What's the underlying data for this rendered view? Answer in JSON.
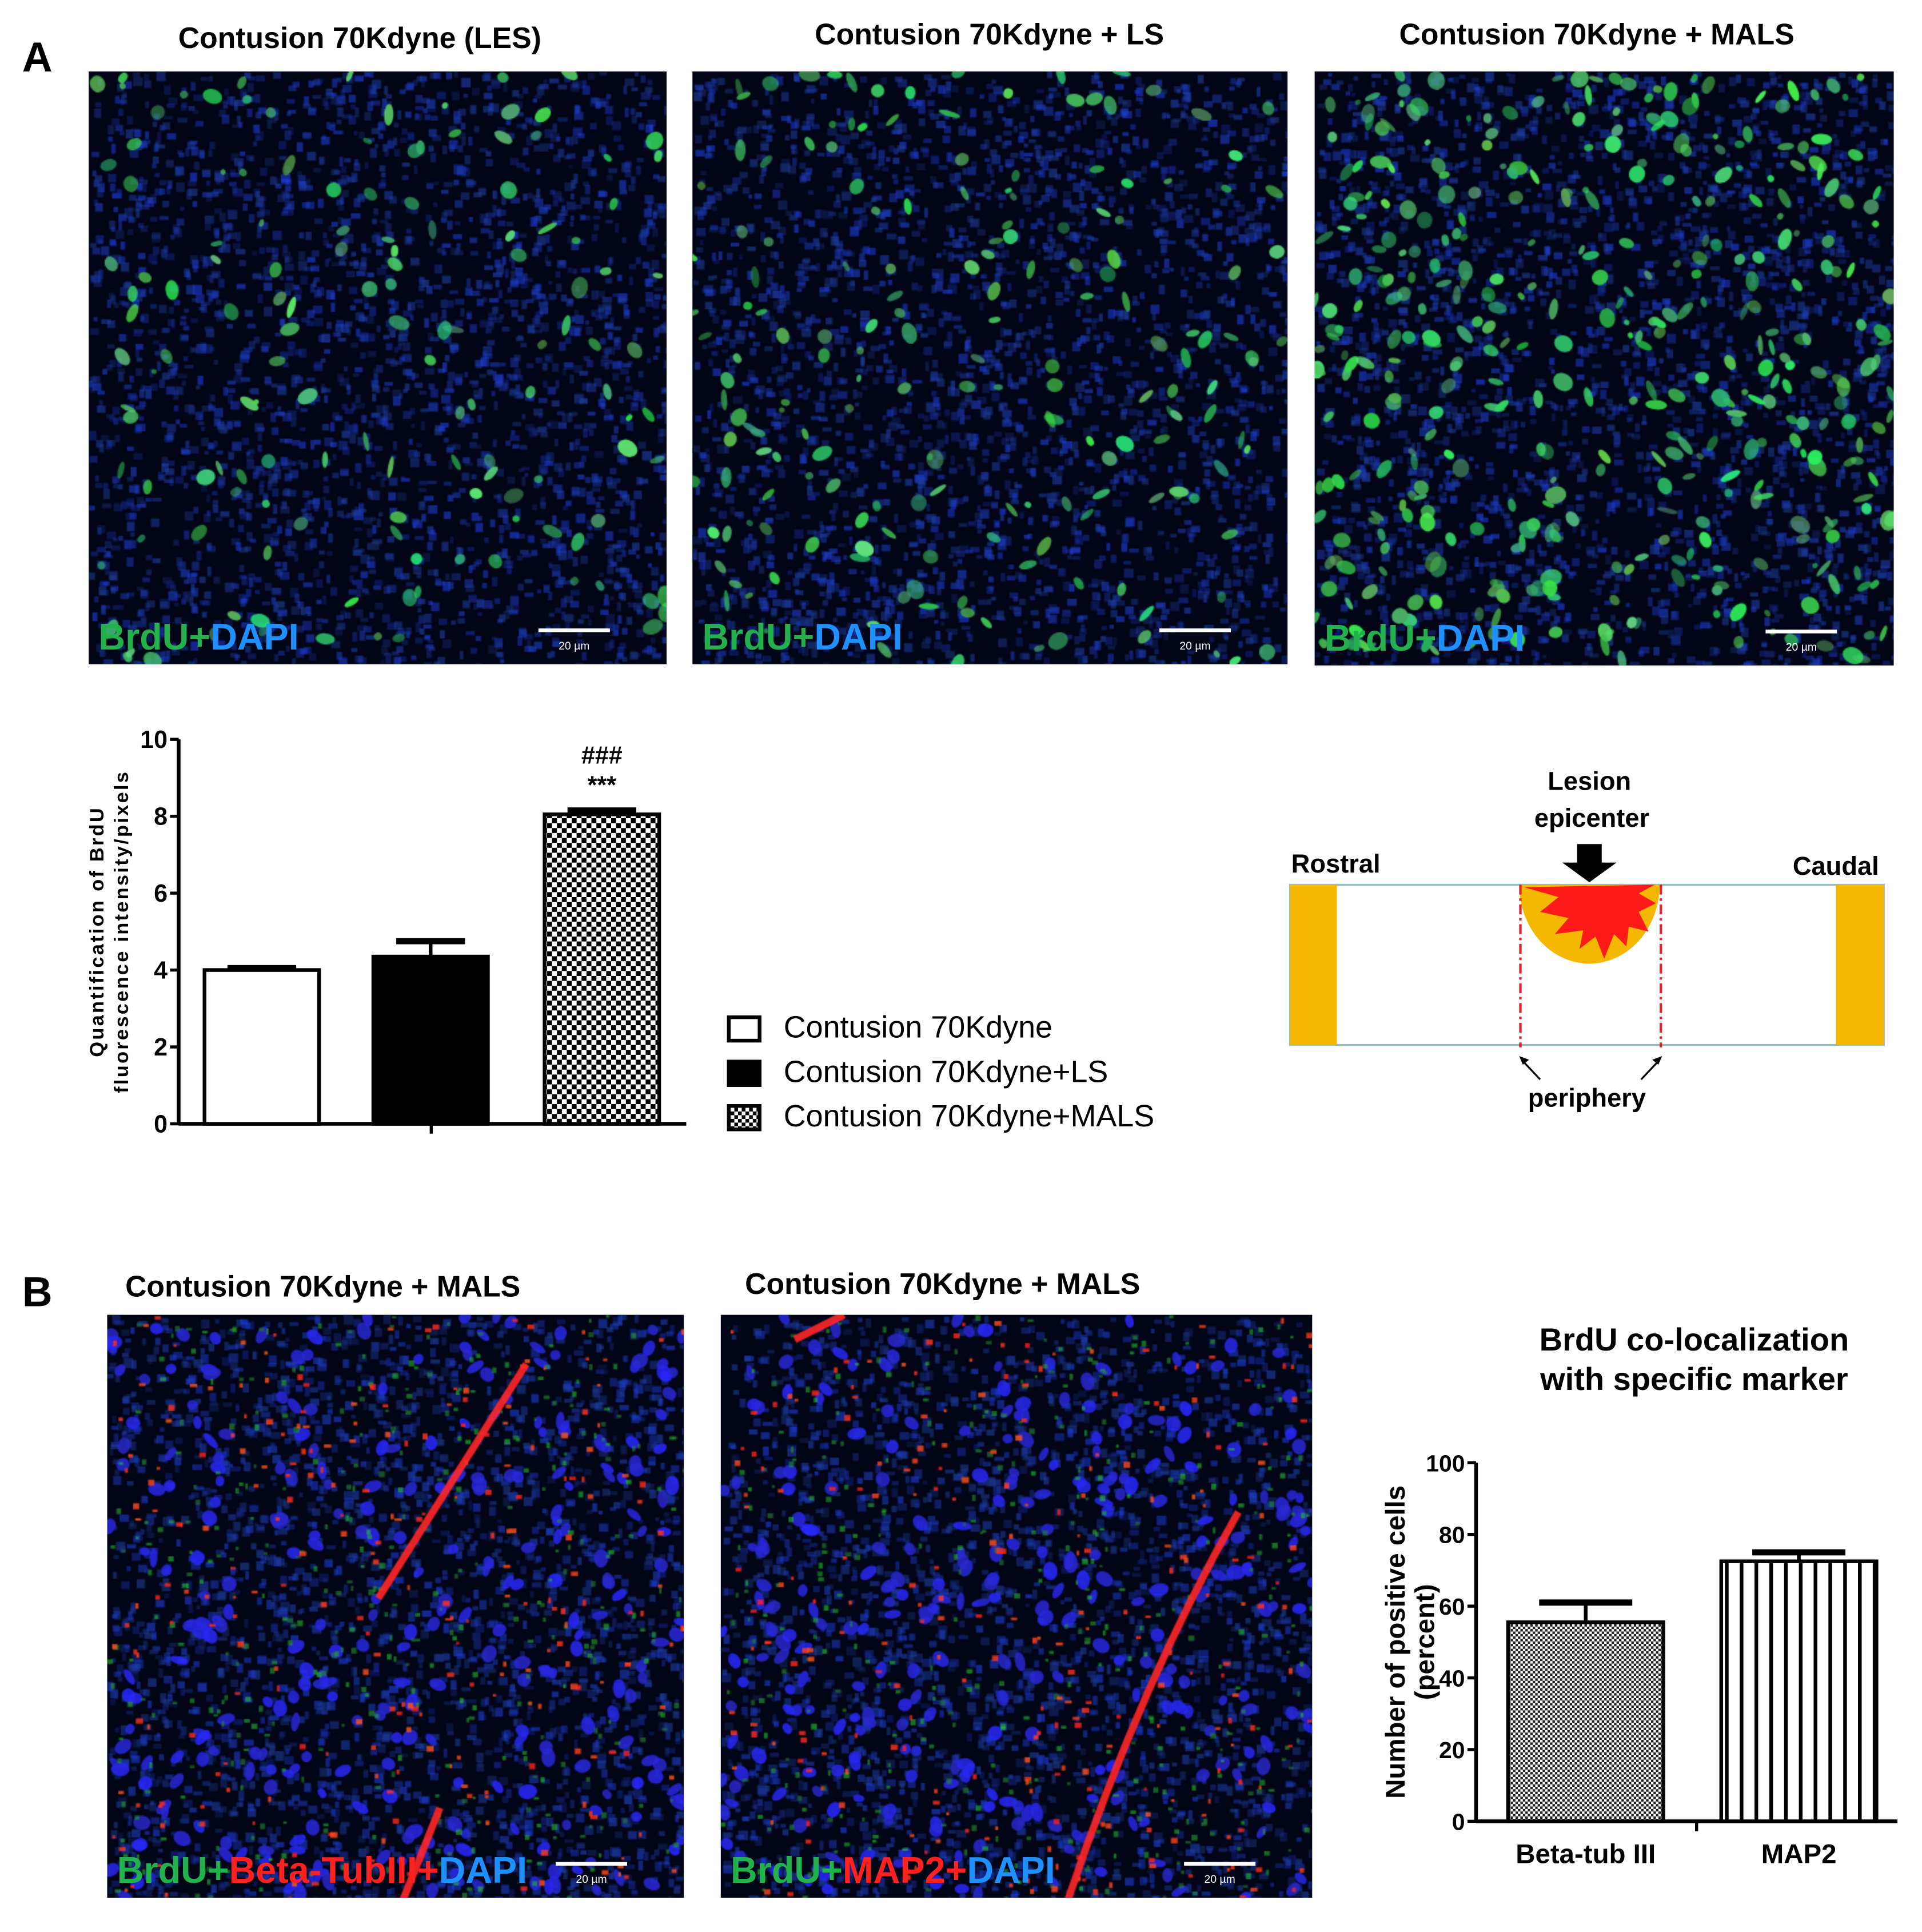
{
  "panel_a": {
    "letter": "A",
    "images": [
      {
        "title": "Contusion 70Kdyne (LES)",
        "label_parts": [
          "BrdU",
          "+",
          "DAPI"
        ],
        "scale_bar": "20 µm",
        "density": 0.35
      },
      {
        "title": "Contusion 70Kdyne + LS",
        "label_parts": [
          "BrdU",
          "+",
          "DAPI"
        ],
        "scale_bar": "20 µm",
        "density": 0.45
      },
      {
        "title": "Contusion 70Kdyne + MALS",
        "label_parts": [
          "BrdU",
          "+",
          "DAPI"
        ],
        "scale_bar": "20 µm",
        "density": 1.0
      }
    ],
    "legend": [
      "Contusion 70Kdyne",
      "Contusion 70Kdyne+LS",
      "Contusion 70Kdyne+MALS"
    ],
    "schematic": {
      "rostral": "Rostral",
      "caudal": "Caudal",
      "epicenter_line1": "Lesion",
      "epicenter_line2": "epicenter",
      "periphery": "periphery",
      "colors": {
        "tissue": "#f5b800",
        "lesion": "#ff1a1a",
        "boundary": "#e8202a"
      }
    }
  },
  "panel_b": {
    "letter": "B",
    "images": [
      {
        "title": "Contusion 70Kdyne + MALS",
        "label_parts": [
          "BrdU",
          "+",
          "Beta-TubIII",
          "+",
          "DAPI"
        ],
        "scale_bar": "20 µm"
      },
      {
        "title": "Contusion 70Kdyne + MALS",
        "label_parts": [
          "BrdU",
          "+",
          "MAP2",
          "+",
          "DAPI"
        ],
        "scale_bar": "20 µm"
      }
    ]
  },
  "colors": {
    "brdu": "#22b14c",
    "dapi": "#1e90ff",
    "red_marker": "#ff2020"
  },
  "chart_data": [
    {
      "type": "bar",
      "title": "",
      "ylabel_line1": "Quantification of BrdU",
      "ylabel_line2": "fluorescence intensity/pixels",
      "xlabel": "",
      "ylim": [
        0,
        10
      ],
      "yticks": [
        "0",
        "2",
        "4",
        "6",
        "8",
        "10"
      ],
      "categories": [
        "Contusion 70Kdyne",
        "Contusion 70Kdyne+LS",
        "Contusion 70Kdyne+MALS"
      ],
      "values": [
        4.0,
        4.35,
        8.05
      ],
      "errors": [
        0.05,
        0.4,
        0.1
      ],
      "fills": [
        "white",
        "black",
        "checker"
      ],
      "annotations": [
        {
          "bar": 2,
          "lines": [
            "###",
            "***"
          ]
        }
      ],
      "legend": "right",
      "grid": false
    },
    {
      "type": "bar",
      "title_line1": "BrdU co-localization",
      "title_line2": "with specific marker",
      "ylabel_line1": "Number of positive cells",
      "ylabel_line2": "(percent)",
      "ylim": [
        0,
        100
      ],
      "yticks": [
        "0",
        "20",
        "40",
        "60",
        "80",
        "100"
      ],
      "categories": [
        "Beta-tub III",
        "MAP2"
      ],
      "values": [
        55.5,
        72.5
      ],
      "errors": [
        5.5,
        2.5
      ],
      "fills": [
        "fine-checker",
        "vertical-stripes"
      ],
      "grid": false
    }
  ]
}
